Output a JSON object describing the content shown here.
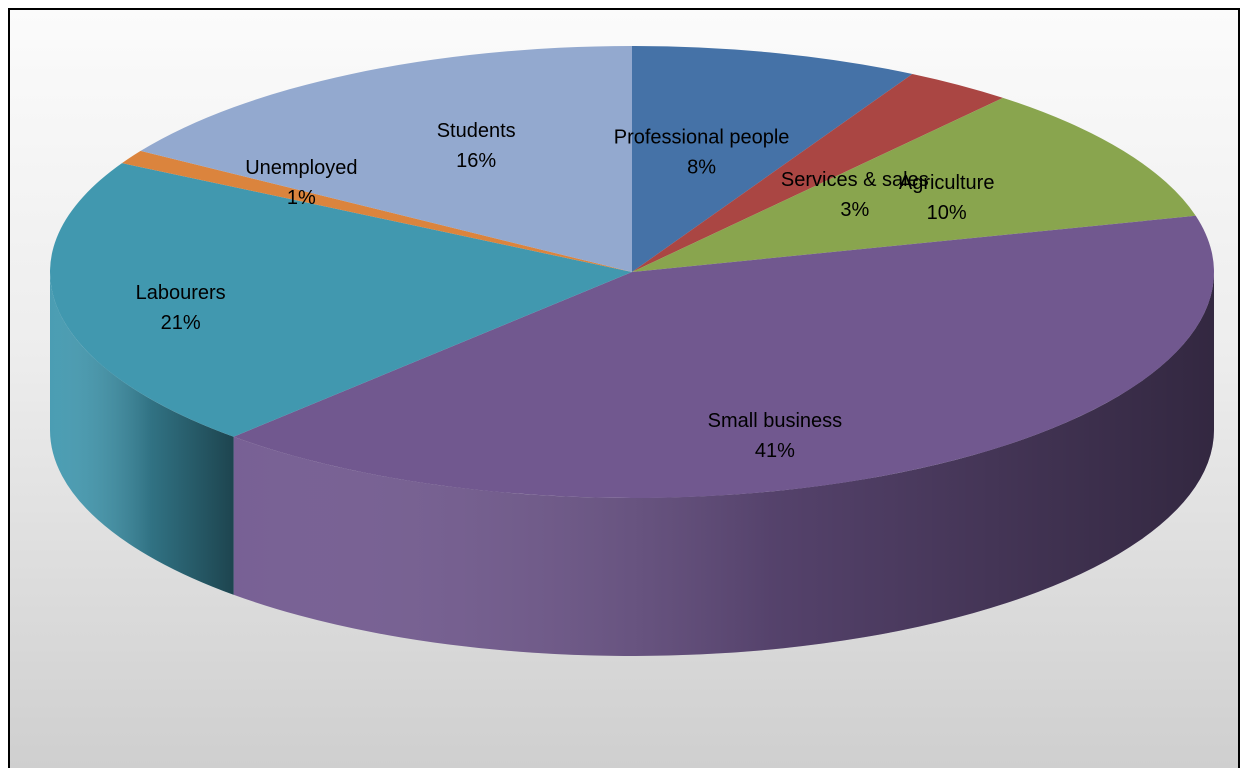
{
  "chart_data": {
    "type": "pie",
    "three_d": true,
    "title": "",
    "legend": "none",
    "slices": [
      {
        "label": "Professional people",
        "value": 8,
        "value_label": "8%",
        "color": "#4572a7"
      },
      {
        "label": "Services & sales",
        "value": 3,
        "value_label": "3%",
        "color": "#aa4643"
      },
      {
        "label": "Agriculture",
        "value": 10,
        "value_label": "10%",
        "color": "#89a54e"
      },
      {
        "label": "Small business",
        "value": 41,
        "value_label": "41%",
        "color": "#71588f"
      },
      {
        "label": "Labourers",
        "value": 21,
        "value_label": "21%",
        "color": "#4198af"
      },
      {
        "label": "Unemployed",
        "value": 1,
        "value_label": "1%",
        "color": "#db843d"
      },
      {
        "label": "Students",
        "value": 16,
        "value_label": "16%",
        "color": "#93a9cf"
      }
    ]
  }
}
